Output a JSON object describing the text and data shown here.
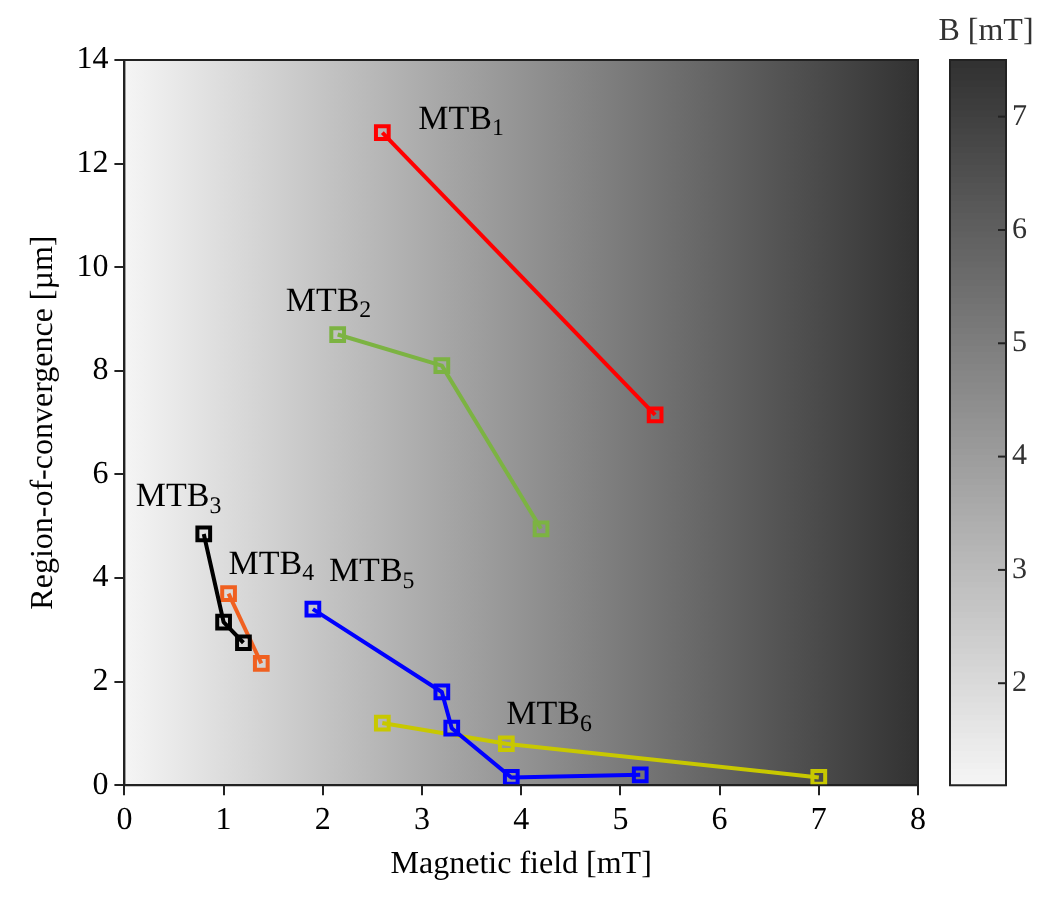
{
  "chart_data": {
    "type": "line",
    "xlabel": "Magnetic field [mT]",
    "ylabel": "Region-of-convergence [µm]",
    "clabel": "B [mT]",
    "clim": [
      1.1,
      7.5
    ],
    "cticks": [
      2,
      3,
      4,
      5,
      6,
      7
    ],
    "xlim": [
      0,
      8
    ],
    "xticks": [
      0,
      1,
      2,
      3,
      4,
      5,
      6,
      7,
      8
    ],
    "ylim": [
      0,
      14
    ],
    "yticks": [
      0,
      2,
      4,
      6,
      8,
      10,
      12,
      14
    ],
    "legend": false,
    "marker": "square",
    "line_style": "solid",
    "series": [
      {
        "name": "MTB$_{1}$",
        "color": "#ff0000",
        "x": [
          2.6,
          5.35
        ],
        "values": [
          12.6,
          7.15
        ]
      },
      {
        "name": "MTB$_{2}$",
        "color": "#7cb342",
        "x": [
          2.15,
          3.2,
          4.2
        ],
        "values": [
          8.7,
          8.1,
          4.95
        ]
      },
      {
        "name": "MTB$_{3}$",
        "color": "#000000",
        "x": [
          0.8,
          1.0,
          1.2
        ],
        "values": [
          4.85,
          3.15,
          2.75
        ]
      },
      {
        "name": "MTB$_{4}$",
        "color": "#f06020",
        "x": [
          1.05,
          1.38
        ],
        "values": [
          3.7,
          2.35
        ]
      },
      {
        "name": "MTB$_{5}$",
        "color": "#0000ff",
        "x": [
          1.9,
          3.2,
          3.3,
          3.9,
          5.2
        ],
        "values": [
          3.4,
          1.8,
          1.1,
          0.15,
          0.2
        ]
      },
      {
        "name": "MTB$_{6}$",
        "color": "#c8c800",
        "x": [
          2.6,
          3.85,
          7.0
        ],
        "values": [
          1.2,
          0.8,
          0.15
        ]
      }
    ]
  }
}
